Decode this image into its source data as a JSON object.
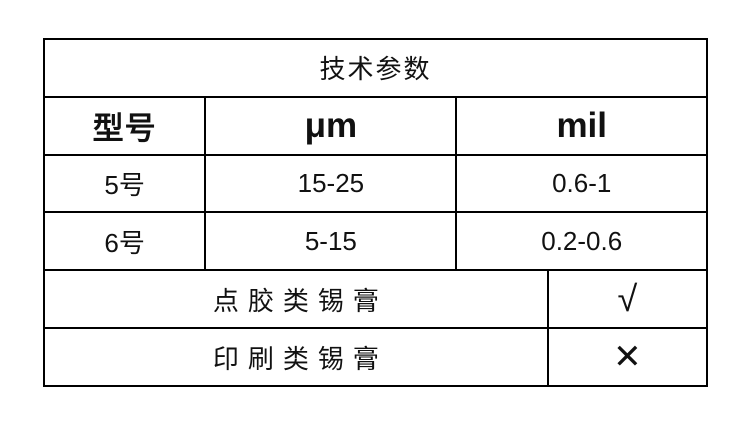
{
  "table": {
    "title": "技术参数",
    "header": {
      "model": "型号",
      "um": "μm",
      "mil": "mil"
    },
    "rows": [
      {
        "model": "5号",
        "um": "15-25",
        "mil": "0.6-1"
      },
      {
        "model": "6号",
        "um": "5-15",
        "mil": "0.2-0.6"
      }
    ],
    "compat": [
      {
        "label": "点胶类锡膏",
        "mark": "√"
      },
      {
        "label": "印刷类锡膏",
        "mark": "✕"
      }
    ],
    "colors": {
      "border": "#000000",
      "text": "#111111",
      "background": "#ffffff"
    }
  }
}
